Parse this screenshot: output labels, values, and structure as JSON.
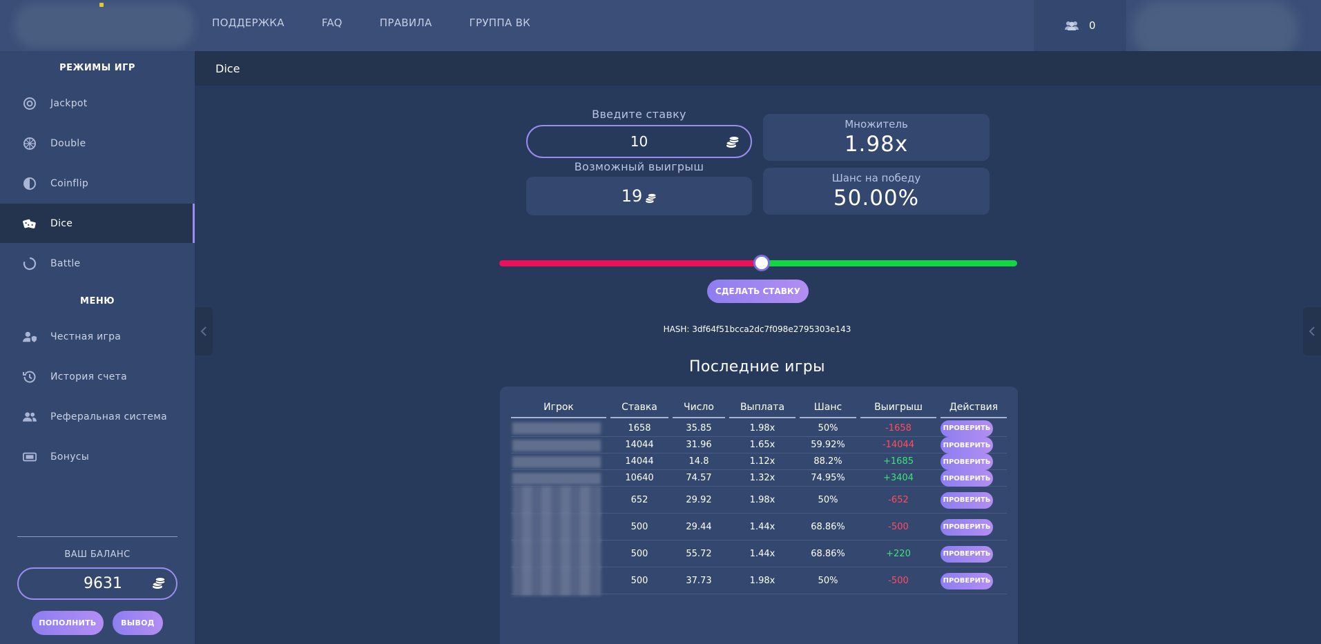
{
  "nav": {
    "items": [
      "ПОДДЕРЖКА",
      "FAQ",
      "ПРАВИЛА",
      "ГРУППА ВК"
    ]
  },
  "online": {
    "count": "0"
  },
  "sidebar": {
    "modes_title": "РЕЖИМЫ ИГР",
    "modes": [
      {
        "label": "Jackpot",
        "icon": "target-icon"
      },
      {
        "label": "Double",
        "icon": "wheel-icon"
      },
      {
        "label": "Coinflip",
        "icon": "half-circle-icon"
      },
      {
        "label": "Dice",
        "icon": "dice-icon",
        "active": true
      },
      {
        "label": "Battle",
        "icon": "ring-icon"
      }
    ],
    "menu_title": "МЕНЮ",
    "menu": [
      {
        "label": "Честная игра",
        "icon": "user-shield-icon"
      },
      {
        "label": "История счета",
        "icon": "history-icon"
      },
      {
        "label": "Реферальная система",
        "icon": "users-icon"
      },
      {
        "label": "Бонусы",
        "icon": "ticket-icon"
      }
    ],
    "balance_label": "ВАШ БАЛАНС",
    "balance": "9631",
    "deposit_label": "ПОПОЛНИТЬ",
    "withdraw_label": "ВЫВОД"
  },
  "page": {
    "title": "Dice"
  },
  "game": {
    "bet_label": "Введите ставку",
    "bet_value": "10",
    "win_label": "Возможный выигрыш",
    "win_value": "19",
    "multiplier_label": "Множитель",
    "multiplier_value": "1.98x",
    "chance_label": "Шанс на победу",
    "chance_value": "50.00%",
    "slider_value": 50,
    "make_bet_label": "СДЕЛАТЬ СТАВКУ",
    "hash_text": "HASH: 3df64f51bcca2dc7f098e2795303e143"
  },
  "recent": {
    "title": "Последние игры",
    "headers": [
      "Игрок",
      "Ставка",
      "Число",
      "Выплата",
      "Шанс",
      "Выигрыш",
      "Действия"
    ],
    "check_label": "ПРОВЕРИТЬ",
    "rows": [
      {
        "bet": "1658",
        "number": "35.85",
        "payout": "1.98x",
        "chance": "50%",
        "win": "-1658",
        "result": "loss"
      },
      {
        "bet": "14044",
        "number": "31.96",
        "payout": "1.65x",
        "chance": "59.92%",
        "win": "-14044",
        "result": "loss"
      },
      {
        "bet": "14044",
        "number": "14.8",
        "payout": "1.12x",
        "chance": "88.2%",
        "win": "+1685",
        "result": "win"
      },
      {
        "bet": "10640",
        "number": "74.57",
        "payout": "1.32x",
        "chance": "74.95%",
        "win": "+3404",
        "result": "win"
      },
      {
        "bet": "652",
        "number": "29.92",
        "payout": "1.98x",
        "chance": "50%",
        "win": "-652",
        "result": "loss"
      },
      {
        "bet": "500",
        "number": "29.44",
        "payout": "1.44x",
        "chance": "68.86%",
        "win": "-500",
        "result": "loss"
      },
      {
        "bet": "500",
        "number": "55.72",
        "payout": "1.44x",
        "chance": "68.86%",
        "win": "+220",
        "result": "win"
      },
      {
        "bet": "500",
        "number": "37.73",
        "payout": "1.98x",
        "chance": "50%",
        "win": "-500",
        "result": "loss"
      }
    ]
  },
  "colors": {
    "accent": "#9d8cf0",
    "loss": "#ff4d5e",
    "win": "#3ee27a",
    "slider_red": "#e8115a",
    "slider_green": "#13d645"
  }
}
